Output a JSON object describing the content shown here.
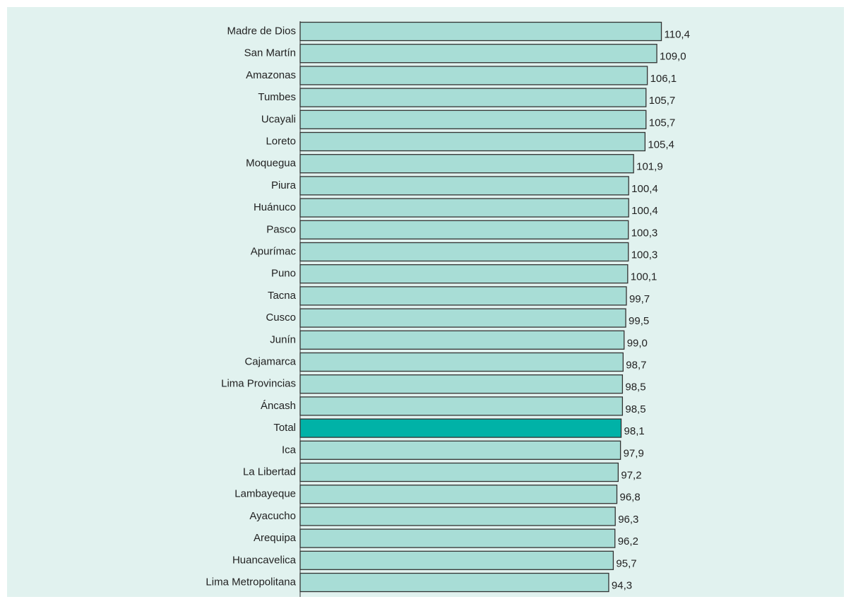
{
  "chart_data": {
    "type": "barh",
    "categories": [
      "Madre de Dios",
      "San Martín",
      "Amazonas",
      "Tumbes",
      "Ucayali",
      "Loreto",
      "Moquegua",
      "Piura",
      "Huánuco",
      "Pasco",
      "Apurímac",
      "Puno",
      "Tacna",
      "Cusco",
      "Junín",
      "Cajamarca",
      "Lima  Provincias",
      "Áncash",
      "Total",
      "Ica",
      "La Libertad",
      "Lambayeque",
      "Ayacucho",
      "Arequipa",
      "Huancavelica",
      "Lima Metropolitana"
    ],
    "values": [
      110.4,
      109.0,
      106.1,
      105.7,
      105.7,
      105.4,
      101.9,
      100.4,
      100.4,
      100.3,
      100.3,
      100.1,
      99.7,
      99.5,
      99.0,
      98.7,
      98.5,
      98.5,
      98.1,
      97.9,
      97.2,
      96.8,
      96.3,
      96.2,
      95.7,
      94.3
    ],
    "value_labels": [
      "110,4",
      "109,0",
      "106,1",
      "105,7",
      "105,7",
      "105,4",
      "101,9",
      "100,4",
      "100,4",
      "100,3",
      "100,3",
      "100,1",
      "99,7",
      "99,5",
      "99,0",
      "98,7",
      "98,5",
      "98,5",
      "98,1",
      "97,9",
      "97,2",
      "96,8",
      "96,3",
      "96,2",
      "95,7",
      "94,3"
    ],
    "colors": [
      "#a8ddd6",
      "#a8ddd6",
      "#a8ddd6",
      "#a8ddd6",
      "#a8ddd6",
      "#a8ddd6",
      "#a8ddd6",
      "#a8ddd6",
      "#a8ddd6",
      "#a8ddd6",
      "#a8ddd6",
      "#a8ddd6",
      "#a8ddd6",
      "#a8ddd6",
      "#a8ddd6",
      "#a8ddd6",
      "#a8ddd6",
      "#a8ddd6",
      "#00b2a7",
      "#a8ddd6",
      "#a8ddd6",
      "#a8ddd6",
      "#a8ddd6",
      "#a8ddd6",
      "#a8ddd6",
      "#a8ddd6"
    ],
    "xlim": [
      0,
      120
    ]
  }
}
